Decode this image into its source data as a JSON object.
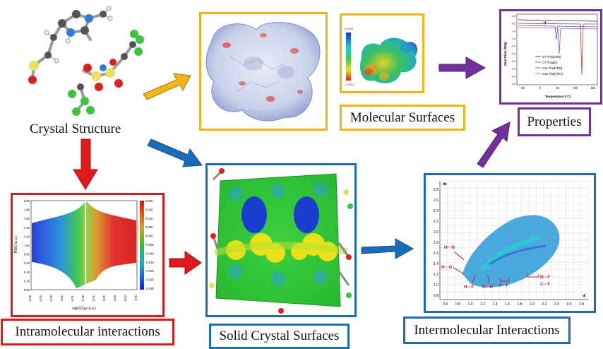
{
  "colors": {
    "gold": "#F2B517",
    "blue": "#1A6DB6",
    "red": "#E0191B",
    "purple": "#7030A0"
  },
  "labels": {
    "crystal_structure": "Crystal Structure",
    "molecular_surfaces": "Molecular Surfaces",
    "properties": "Properties",
    "intramolecular": "Intramolecular interactions",
    "solid_crystal": "Solid Crystal Surfaces",
    "intermolecular": "Intermolecular Interactions"
  },
  "dsc_plot": {
    "ylabel": "Heat Flow (W/g)",
    "xlabel": "Temperature (°C)",
    "legend": [
      "C7-Thia[Tf2N]",
      "C7-Thia[Br]",
      "C11-Thia[Tf2N]",
      "C12-Thia[Tf2N]"
    ],
    "x_ticks": [
      "-50",
      "0",
      "50",
      "100",
      "150"
    ],
    "y_ticks": [
      "0.0",
      "-0.5",
      "-1.0",
      "-1.5",
      "-2.0",
      "-2.5",
      "-3.0",
      "-3.5",
      "-4.0",
      "-4.5"
    ]
  },
  "esp_colorbar": {
    "max": "0.0416",
    "min": "-0.0280"
  },
  "nci_plot": {
    "ylabel": "RDG (a.u.)",
    "xlabel": "sign(λ2)ρ (a.u.)",
    "x_ticks": [
      "-0.05",
      "-0.04",
      "-0.03",
      "-0.02",
      "-0.01",
      "0.00",
      "0.01",
      "0.02",
      "0.03",
      "0.04",
      "0.05"
    ],
    "y_ticks": [
      "2.00",
      "1.80",
      "1.60",
      "1.40",
      "1.20",
      "1.00",
      "0.80",
      "0.60",
      "0.40",
      "0.20",
      "0.00"
    ],
    "colorbar": [
      "0.020",
      "0.015",
      "0.010",
      "0.005",
      "0.000",
      "-0.005",
      "-0.010",
      "-0.015",
      "-0.020",
      "-0.025",
      "-0.030"
    ]
  },
  "fingerprint_plot": {
    "de_label": "de",
    "di_label": "di",
    "y_ticks": [
      "2.8",
      "2.6",
      "2.4",
      "2.2",
      "2.0",
      "1.8",
      "1.6",
      "1.4",
      "1.2",
      "1.0",
      "0.8"
    ],
    "x_ticks": [
      "0.6",
      "0.8",
      "1.0",
      "1.2",
      "1.4",
      "1.6",
      "1.8",
      "2.0",
      "2.2",
      "2.4",
      "2.6",
      "2.8"
    ],
    "annotations": [
      "H···N",
      "H···O",
      "H···F",
      "O···H",
      "F···F",
      "N···F",
      "C···F"
    ]
  }
}
